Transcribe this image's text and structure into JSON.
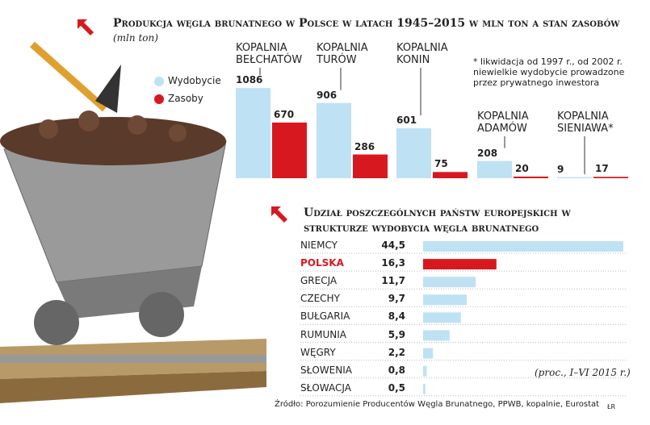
{
  "chart_data": [
    {
      "type": "bar",
      "title": "Produkcja węgla brunatnego w Polsce w latach 1945–2015 w mln ton a stan zasobów",
      "subtitle": "(mln ton)",
      "categories": [
        "KOPALNIA BEŁCHATÓW",
        "KOPALNIA TURÓW",
        "KOPALNIA KONIN",
        "KOPALNIA ADAMÓW",
        "KOPALNIA SIENIAWA*"
      ],
      "series": [
        {
          "name": "Wydobycie",
          "color": "#bfe1f4",
          "values": [
            1086,
            906,
            601,
            208,
            9
          ]
        },
        {
          "name": "Zasoby",
          "color": "#d7191f",
          "values": [
            670,
            286,
            75,
            20,
            17
          ]
        }
      ],
      "note": "* likwidacja od 1997 r., od 2002 r. niewielkie wydobycie prowadzone przez prywatnego inwestora"
    },
    {
      "type": "hbar",
      "title": "Udział poszczególnych państw europejskich w strukturze wydobycia węgla brunatnego",
      "categories": [
        "NIEMCY",
        "POLSKA",
        "GRECJA",
        "CZECHY",
        "BUŁGARIA",
        "RUMUNIA",
        "WĘGRY",
        "SŁOWENIA",
        "SŁOWACJA"
      ],
      "values": [
        44.5,
        16.3,
        11.7,
        9.7,
        8.4,
        5.9,
        2.2,
        0.8,
        0.5
      ],
      "value_labels": [
        "44,5",
        "16,3",
        "11,7",
        "9,7",
        "8,4",
        "5,9",
        "2,2",
        "0,8",
        "0,5"
      ],
      "colors": [
        "#bfe1f4",
        "#d7191f",
        "#bfe1f4",
        "#bfe1f4",
        "#bfe1f4",
        "#bfe1f4",
        "#bfe1f4",
        "#bfe1f4",
        "#bfe1f4"
      ],
      "note": "(proc., I–VI 2015 r.)"
    }
  ],
  "source": "Źródło: Porozumienie Producentów Węgla Brunatnego, PPWB, kopalnie, Eurostat",
  "credit": "ŁR"
}
